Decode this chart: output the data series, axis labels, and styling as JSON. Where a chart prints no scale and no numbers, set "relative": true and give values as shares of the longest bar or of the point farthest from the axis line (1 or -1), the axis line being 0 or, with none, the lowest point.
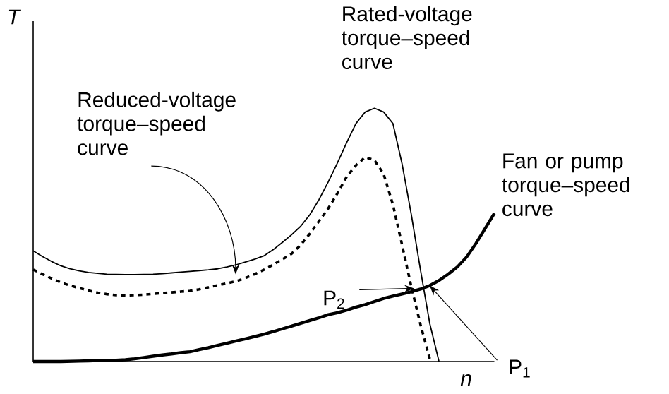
{
  "chart_data": {
    "type": "line",
    "relative": true,
    "xlabel": "n",
    "ylabel": "T",
    "tick_labels": false,
    "categories": [
      null,
      null,
      null,
      null,
      null,
      null,
      null,
      null,
      null,
      null,
      null,
      null,
      null,
      null,
      null,
      null,
      null,
      null,
      null,
      null,
      null,
      null,
      null,
      null,
      null,
      null,
      null,
      null,
      null,
      null,
      null,
      null,
      null,
      null,
      null,
      null,
      null,
      null,
      null,
      null,
      null,
      null,
      null,
      null,
      null,
      null,
      null,
      null,
      null,
      null,
      null
    ],
    "series": [
      {
        "color": "#000000",
        "line_style": "solid",
        "values": [
          0.437,
          0.415,
          0.395,
          0.378,
          0.366,
          0.358,
          0.352,
          0.348,
          0.345,
          0.344,
          0.343,
          0.343,
          0.344,
          0.345,
          0.347,
          0.35,
          0.353,
          0.356,
          0.359,
          0.362,
          0.366,
          0.373,
          0.382,
          0.393,
          0.404,
          0.417,
          0.441,
          0.47,
          0.5,
          0.534,
          0.58,
          0.64,
          0.71,
          0.785,
          0.865,
          0.94,
          0.985,
          1.0,
          0.985,
          0.94,
          0.78,
          0.58,
          0.36,
          0.15,
          0,
          null,
          null,
          null,
          null,
          null,
          null
        ]
      },
      {
        "color": "#000000",
        "line_style": "dashed",
        "values": [
          0.363,
          0.345,
          0.328,
          0.312,
          0.3,
          0.29,
          0.28,
          0.272,
          0.266,
          0.262,
          0.261,
          0.262,
          0.264,
          0.267,
          0.27,
          0.273,
          0.276,
          0.279,
          0.285,
          0.293,
          0.301,
          0.309,
          0.317,
          0.33,
          0.345,
          0.362,
          0.382,
          0.403,
          0.425,
          0.46,
          0.505,
          0.555,
          0.605,
          0.665,
          0.73,
          0.775,
          0.807,
          0.795,
          0.74,
          0.62,
          0.46,
          0.295,
          0.145,
          0.011,
          null,
          null,
          null,
          null,
          null,
          null,
          null
        ]
      },
      {
        "color": "#000000",
        "line_style": "solid",
        "values": [
          0,
          0,
          0,
          0,
          0.001,
          0.002,
          0.003,
          0.004,
          0.004,
          0.005,
          0.007,
          0.011,
          0.016,
          0.021,
          0.026,
          0.03,
          0.035,
          0.039,
          0.047,
          0.055,
          0.064,
          0.072,
          0.081,
          0.09,
          0.099,
          0.108,
          0.118,
          0.129,
          0.14,
          0.151,
          0.162,
          0.173,
          0.185,
          0.193,
          0.203,
          0.215,
          0.225,
          0.237,
          0.249,
          0.258,
          0.267,
          0.276,
          0.286,
          0.3,
          0.32,
          0.345,
          0.374,
          0.413,
          0.466,
          0.525,
          0.585
        ]
      }
    ],
    "annotations": [
      "Rated-voltage torque–speed curve",
      "Reduced-voltage torque–speed curve",
      "Fan or pump torque–speed curve",
      "P$_{2}$",
      "P$_{1}$"
    ]
  }
}
